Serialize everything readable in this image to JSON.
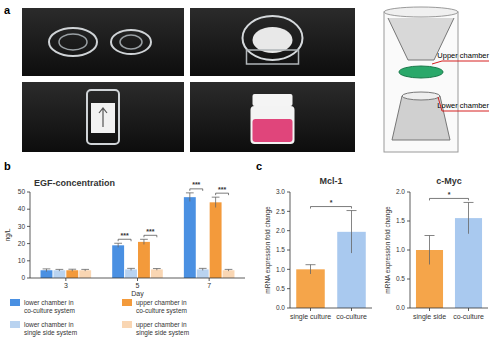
{
  "panel_labels": [
    "a",
    "b",
    "c"
  ],
  "diagram": {
    "labels": [
      "Upper chamber",
      "Lower chamber"
    ]
  },
  "chart_data": [
    {
      "type": "bar",
      "title": "EGF-concentration",
      "x_label": "Day",
      "y_label": "ng/L",
      "categories": [
        "3",
        "5",
        "7"
      ],
      "series": [
        {
          "name": "lower chamber in co-culture system",
          "color": "#4a90e2",
          "values": [
            4.5,
            19,
            47
          ],
          "errors": [
            0.8,
            1.2,
            2.5
          ]
        },
        {
          "name": "lower chamber in single side system",
          "color": "#b9d3f0",
          "values": [
            4.5,
            5,
            5
          ],
          "errors": [
            0.5,
            0.6,
            0.6
          ]
        },
        {
          "name": "upper chamber in co-culture system",
          "color": "#f39a3b",
          "values": [
            4.5,
            21,
            44
          ],
          "errors": [
            0.6,
            1.5,
            3
          ]
        },
        {
          "name": "upper chamber in single side system",
          "color": "#f9d6b3",
          "values": [
            4.5,
            5,
            4.5
          ],
          "errors": [
            0.5,
            0.5,
            0.5
          ]
        }
      ],
      "ylim": [
        0,
        50
      ],
      "yticks": [
        0,
        10,
        20,
        30,
        40,
        50
      ],
      "annotations": [
        {
          "text": "***",
          "category": 1,
          "series": [
            0,
            1
          ]
        },
        {
          "text": "***",
          "category": 1,
          "series": [
            2,
            3
          ]
        },
        {
          "text": "***",
          "category": 2,
          "series": [
            0,
            1
          ]
        },
        {
          "text": "***",
          "category": 2,
          "series": [
            2,
            3
          ]
        }
      ],
      "legend": "bottom"
    },
    {
      "type": "bar",
      "title": "Mcl-1",
      "y_label": "mRNA expression fold change",
      "categories": [
        "single culture",
        "co-culture"
      ],
      "values": [
        1.0,
        1.97
      ],
      "errors": [
        0.12,
        0.55
      ],
      "colors": [
        "#f5a54a",
        "#a9c9ef"
      ],
      "ylim": [
        0,
        3
      ],
      "yticks": [
        {
          "value": 0,
          "label": "0.0"
        },
        {
          "value": 0.5,
          "label": "0.5"
        },
        {
          "value": 1,
          "label": "1.0"
        },
        {
          "value": 1.5,
          "label": "1.5"
        },
        {
          "value": 2,
          "label": "2.0"
        },
        {
          "value": 2.5,
          "label": "2.5"
        },
        {
          "value": 3,
          "label": "3.0"
        }
      ],
      "annotations": [
        {
          "text": "*",
          "categories": [
            0,
            1
          ]
        }
      ]
    },
    {
      "type": "bar",
      "title": "c-Myc",
      "y_label": "mRNA expression fold change",
      "categories": [
        "single side",
        "co-culture"
      ],
      "values": [
        1.0,
        1.55
      ],
      "errors": [
        0.25,
        0.27
      ],
      "colors": [
        "#f5a54a",
        "#a9c9ef"
      ],
      "ylim": [
        0,
        2
      ],
      "yticks": [
        {
          "value": 0,
          "label": "0.0"
        },
        {
          "value": 0.5,
          "label": "0.5"
        },
        {
          "value": 1,
          "label": "1.0"
        },
        {
          "value": 1.5,
          "label": "1.5"
        },
        {
          "value": 2,
          "label": "2.0"
        }
      ],
      "annotations": [
        {
          "text": "*",
          "categories": [
            0,
            1
          ]
        }
      ]
    }
  ]
}
